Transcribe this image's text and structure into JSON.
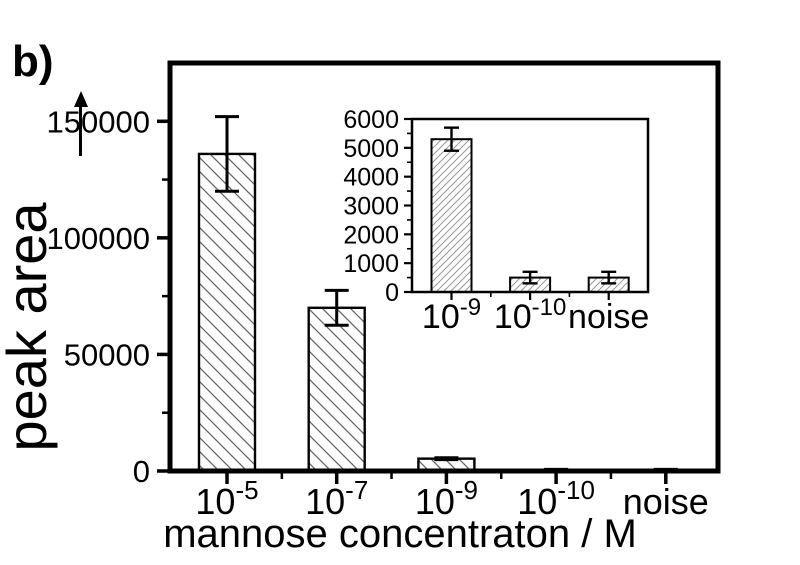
{
  "figure_label": "b)",
  "colors": {
    "foreground": "#000000",
    "background": "#ffffff",
    "hatch_main": "#666666",
    "hatch_inset": "#999999"
  },
  "chart_data": [
    {
      "id": "main",
      "type": "bar",
      "title": "",
      "categories": [
        "10^-5",
        "10^-7",
        "10^-9",
        "10^-10",
        "noise"
      ],
      "values": [
        136000,
        70000,
        5300,
        500,
        500
      ],
      "errors": [
        16000,
        7500,
        400,
        200,
        200
      ],
      "xlabel": "mannose concentraton / M",
      "ylabel": "peak area",
      "ylim": [
        0,
        175000
      ],
      "yticks": [
        0,
        50000,
        100000,
        150000
      ],
      "yticks_minor": [
        25000,
        75000,
        125000
      ],
      "hatch": "\\",
      "grid": false,
      "legend": false
    },
    {
      "id": "inset",
      "type": "bar",
      "title": "",
      "categories": [
        "10^-9",
        "10^-10",
        "noise"
      ],
      "values": [
        5300,
        500,
        500
      ],
      "errors": [
        400,
        200,
        200
      ],
      "xlabel": "",
      "ylabel": "",
      "ylim": [
        0,
        6000
      ],
      "yticks": [
        0,
        1000,
        2000,
        3000,
        4000,
        5000,
        6000
      ],
      "yticks_minor": [
        500,
        1500,
        2500,
        3500,
        4500,
        5500
      ],
      "hatch": "/",
      "grid": false,
      "legend": false
    }
  ]
}
